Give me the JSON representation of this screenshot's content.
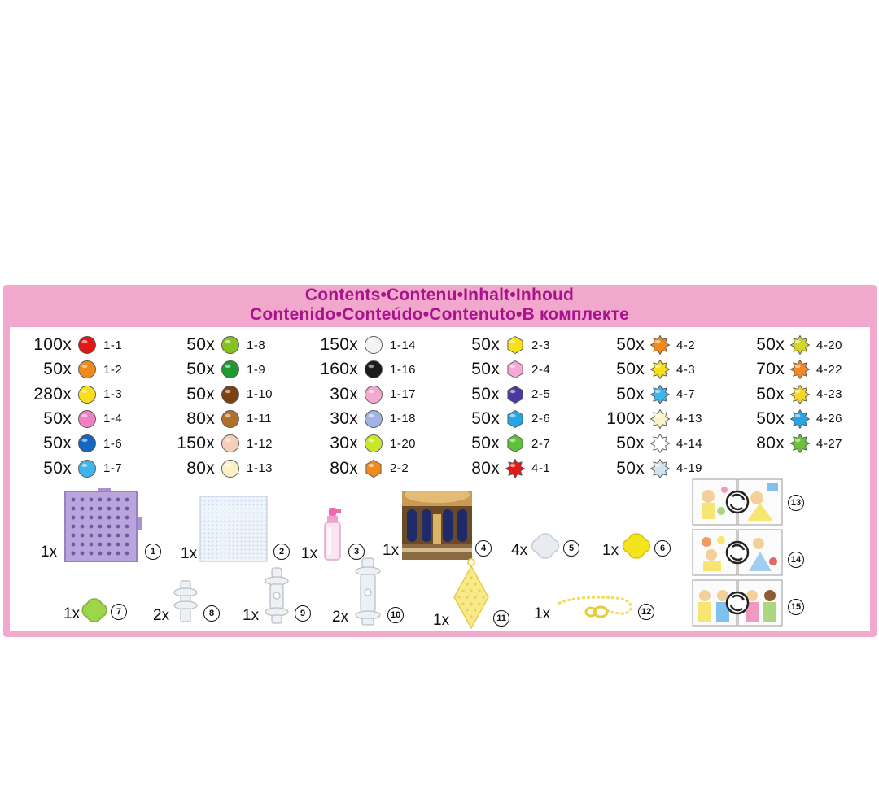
{
  "title_line1": "Contents•Contenu•Inhalt•Inhoud",
  "title_line2": "Contenido•Conteúdo•Contenuto•В комплекте",
  "bead_columns": [
    {
      "items": [
        {
          "qty": "100x",
          "code": "1-1",
          "color": "#e01818",
          "shape": "round"
        },
        {
          "qty": "50x",
          "code": "1-2",
          "color": "#f08a1a",
          "shape": "round"
        },
        {
          "qty": "280x",
          "code": "1-3",
          "color": "#f7e01a",
          "shape": "round"
        },
        {
          "qty": "50x",
          "code": "1-4",
          "color": "#f07ec0",
          "shape": "round"
        },
        {
          "qty": "50x",
          "code": "1-6",
          "color": "#1466c0",
          "shape": "round"
        },
        {
          "qty": "50x",
          "code": "1-7",
          "color": "#3fb4ea",
          "shape": "round"
        }
      ]
    },
    {
      "items": [
        {
          "qty": "50x",
          "code": "1-8",
          "color": "#86c21e",
          "shape": "round"
        },
        {
          "qty": "50x",
          "code": "1-9",
          "color": "#1e9a2e",
          "shape": "round"
        },
        {
          "qty": "50x",
          "code": "1-10",
          "color": "#7a4212",
          "shape": "round"
        },
        {
          "qty": "80x",
          "code": "1-11",
          "color": "#b0702a",
          "shape": "round"
        },
        {
          "qty": "150x",
          "code": "1-12",
          "color": "#f6cdb6",
          "shape": "round"
        },
        {
          "qty": "80x",
          "code": "1-13",
          "color": "#fbf1c4",
          "shape": "round"
        }
      ]
    },
    {
      "items": [
        {
          "qty": "150x",
          "code": "1-14",
          "color": "#f4f4f4",
          "shape": "round"
        },
        {
          "qty": "160x",
          "code": "1-16",
          "color": "#1a1a1a",
          "shape": "round"
        },
        {
          "qty": "30x",
          "code": "1-17",
          "color": "#f3a9cf",
          "shape": "round"
        },
        {
          "qty": "30x",
          "code": "1-18",
          "color": "#9fb3e6",
          "shape": "round"
        },
        {
          "qty": "30x",
          "code": "1-20",
          "color": "#c8e62a",
          "shape": "round"
        },
        {
          "qty": "80x",
          "code": "2-2",
          "color": "#f08a1a",
          "shape": "hex"
        }
      ]
    },
    {
      "items": [
        {
          "qty": "50x",
          "code": "2-3",
          "color": "#f7e01a",
          "shape": "hex"
        },
        {
          "qty": "50x",
          "code": "2-4",
          "color": "#f5a9d4",
          "shape": "hex"
        },
        {
          "qty": "50x",
          "code": "2-5",
          "color": "#4a3aa0",
          "shape": "hex"
        },
        {
          "qty": "50x",
          "code": "2-6",
          "color": "#22a6e6",
          "shape": "hex"
        },
        {
          "qty": "50x",
          "code": "2-7",
          "color": "#5cc23a",
          "shape": "hex"
        },
        {
          "qty": "80x",
          "code": "4-1",
          "color": "#e01818",
          "shape": "star"
        }
      ]
    },
    {
      "items": [
        {
          "qty": "50x",
          "code": "4-2",
          "color": "#f08a1a",
          "shape": "star"
        },
        {
          "qty": "50x",
          "code": "4-3",
          "color": "#f7e01a",
          "shape": "star"
        },
        {
          "qty": "50x",
          "code": "4-7",
          "color": "#3fb4ea",
          "shape": "star"
        },
        {
          "qty": "100x",
          "code": "4-13",
          "color": "#fbf3c8",
          "shape": "star"
        },
        {
          "qty": "50x",
          "code": "4-14",
          "color": "#ffffff",
          "shape": "star"
        },
        {
          "qty": "50x",
          "code": "4-19",
          "color": "#cfe4ef",
          "shape": "star"
        }
      ]
    },
    {
      "items": [
        {
          "qty": "50x",
          "code": "4-20",
          "color": "#d2d62a",
          "shape": "star"
        },
        {
          "qty": "70x",
          "code": "4-22",
          "color": "#f28a2a",
          "shape": "star"
        },
        {
          "qty": "50x",
          "code": "4-23",
          "color": "#f7d62a",
          "shape": "star"
        },
        {
          "qty": "50x",
          "code": "4-26",
          "color": "#2aa2e6",
          "shape": "star"
        },
        {
          "qty": "80x",
          "code": "4-27",
          "color": "#6cc23a",
          "shape": "star"
        }
      ]
    }
  ],
  "accessories": [
    {
      "qty": "1x",
      "num": "1",
      "icon": "pegboard-icon"
    },
    {
      "qty": "1x",
      "num": "2",
      "icon": "layout-tray-icon"
    },
    {
      "qty": "1x",
      "num": "3",
      "icon": "spray-bottle-icon"
    },
    {
      "qty": "1x",
      "num": "4",
      "icon": "backdrop-card-icon"
    },
    {
      "qty": "4x",
      "num": "5",
      "icon": "clear-connector-icon"
    },
    {
      "qty": "1x",
      "num": "6",
      "icon": "yellow-connector-icon"
    },
    {
      "qty": "1x",
      "num": "7",
      "icon": "green-connector-icon"
    },
    {
      "qty": "2x",
      "num": "8",
      "icon": "stand-piece-icon"
    },
    {
      "qty": "1x",
      "num": "9",
      "icon": "peg-piece-icon"
    },
    {
      "qty": "2x",
      "num": "10",
      "icon": "pillar-piece-icon"
    },
    {
      "qty": "1x",
      "num": "11",
      "icon": "diamond-pegboard-icon"
    },
    {
      "qty": "1x",
      "num": "12",
      "icon": "chain-icon"
    },
    {
      "num": "13",
      "icon": "template-sheet-icon"
    },
    {
      "num": "14",
      "icon": "template-sheet-icon"
    },
    {
      "num": "15",
      "icon": "template-sheet-icon"
    }
  ]
}
